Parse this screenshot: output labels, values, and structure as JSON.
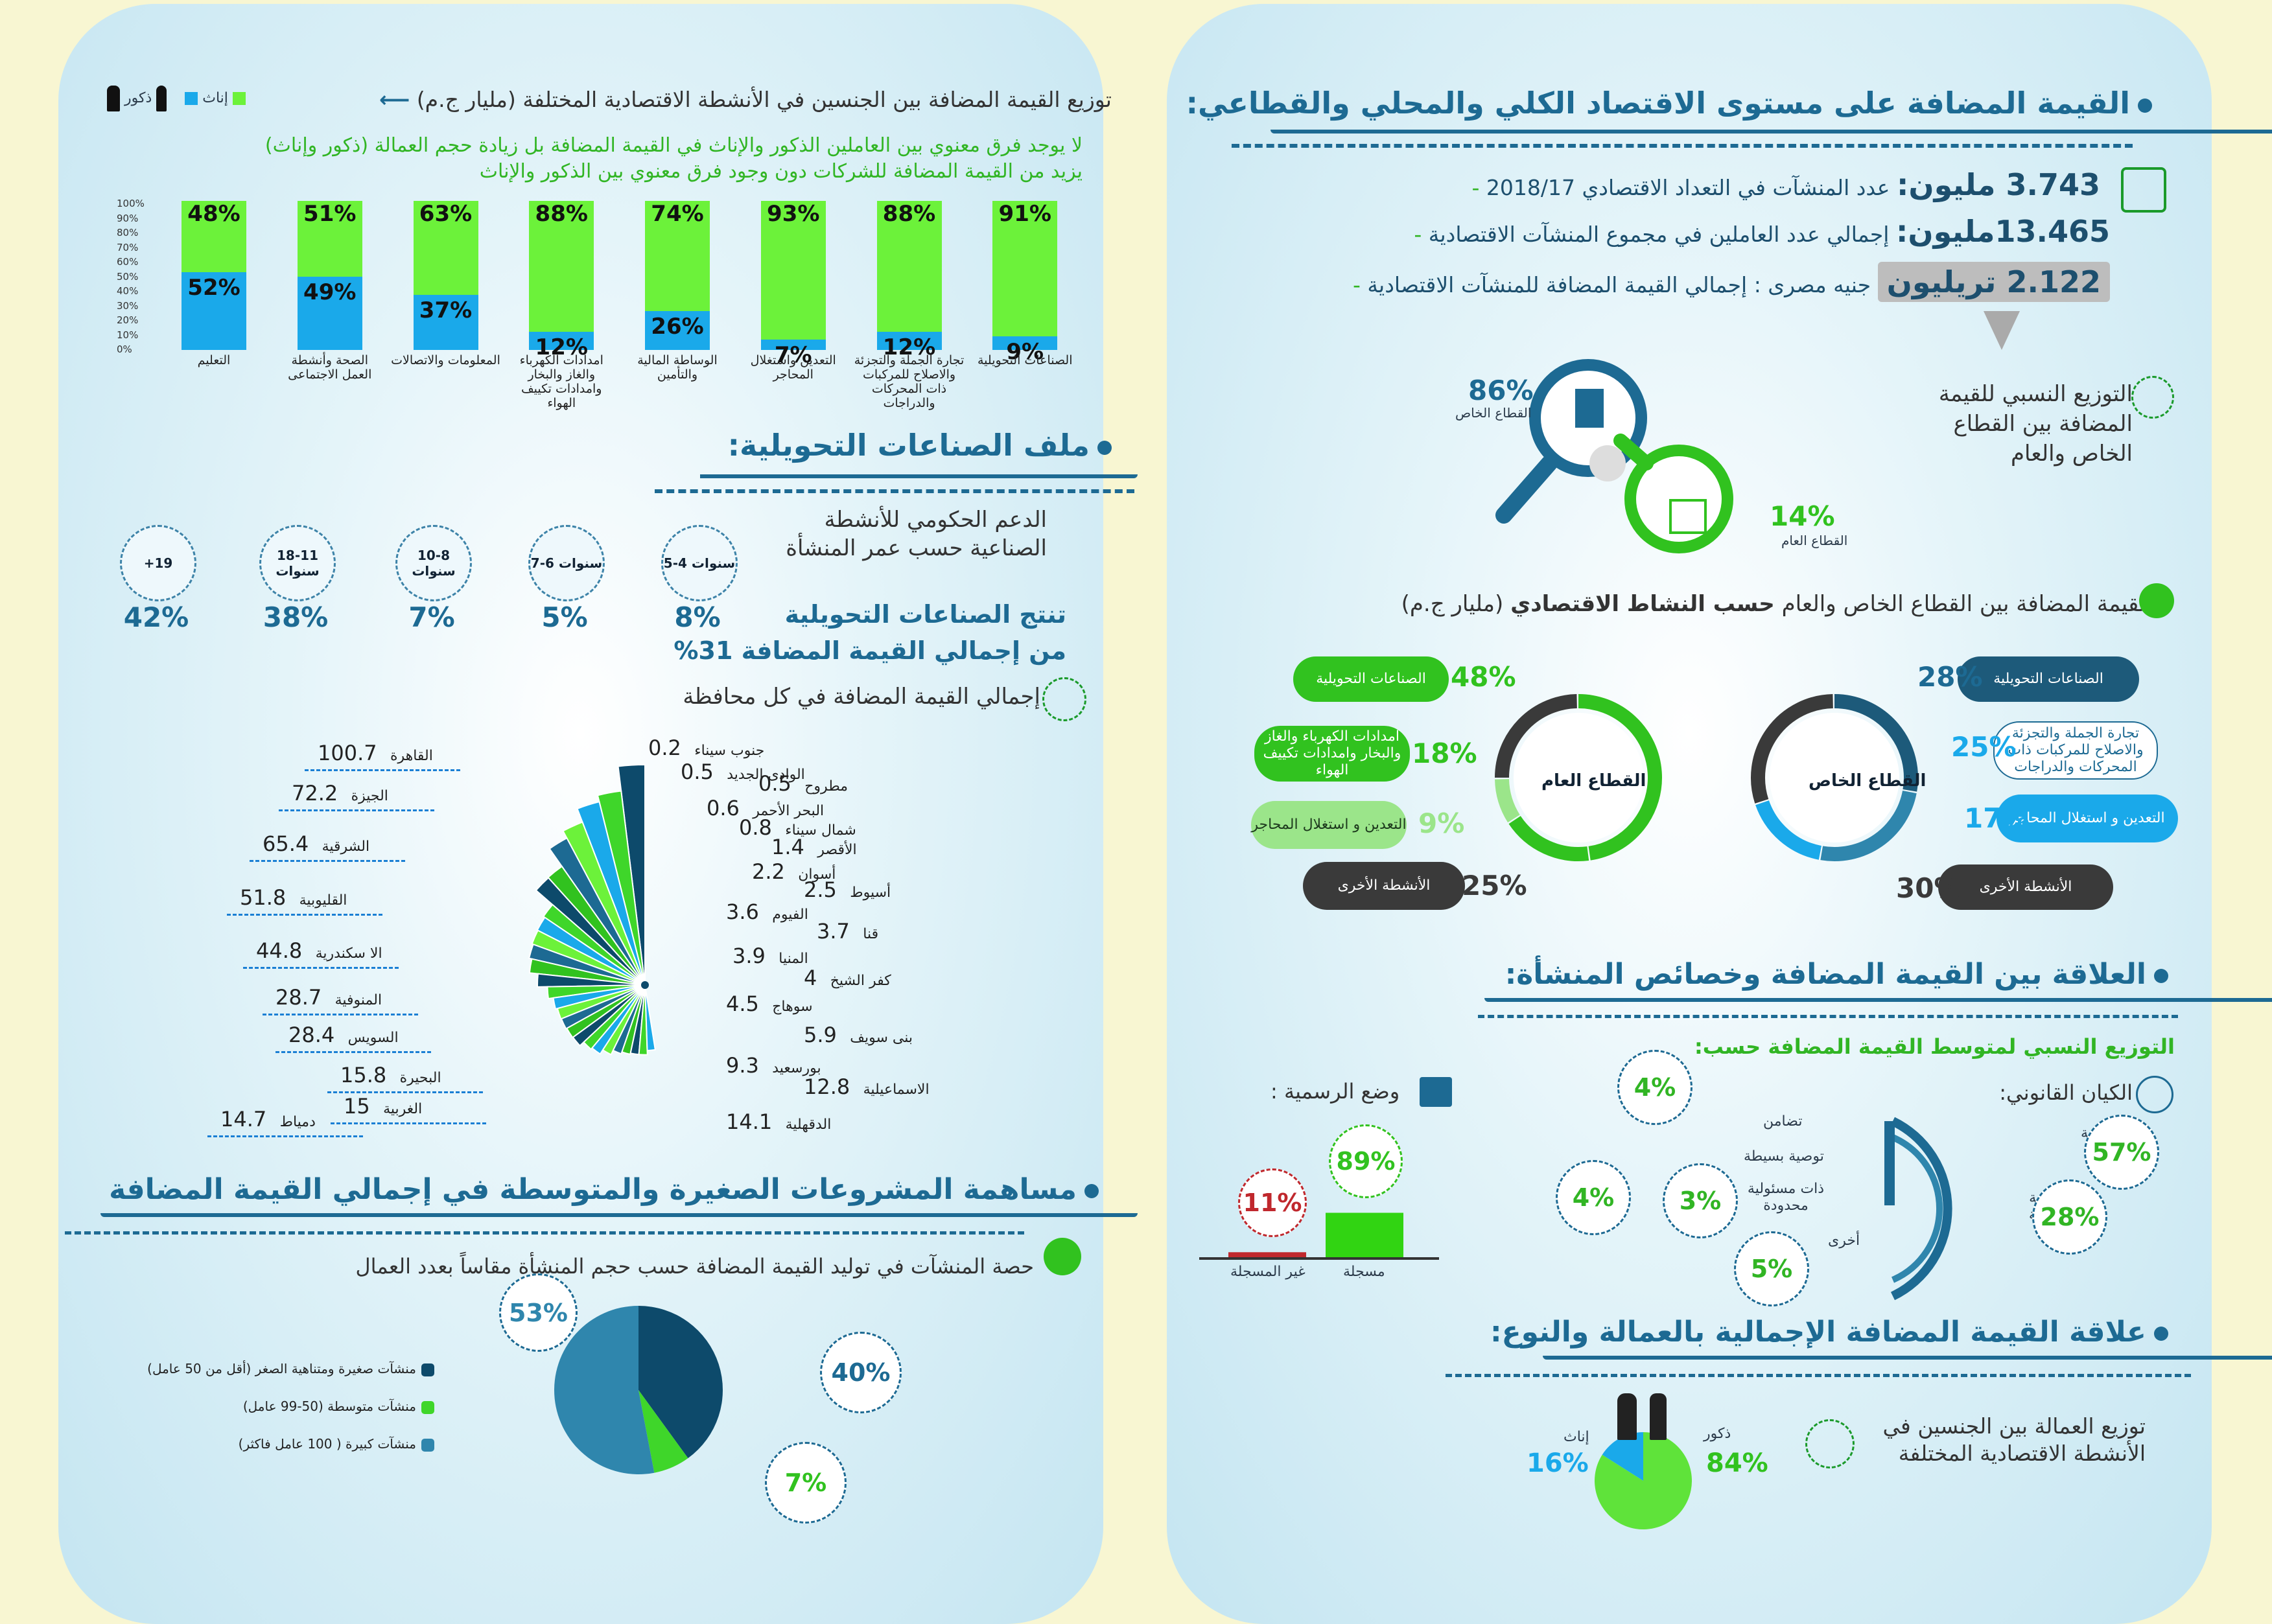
{
  "right": {
    "main_title": "القيمة المضافة على مستوى الاقتصاد الكلي والمحلي والقطاعي:",
    "stats": [
      {
        "value": "3.743 مليون:",
        "text": "عدد المنشآت في التعداد الاقتصادي 2018/17"
      },
      {
        "value": "13.465مليون:",
        "text": "إجمالي عدد العاملين في مجموع المنشآت الاقتصادية"
      },
      {
        "value": "2.122 تريليون",
        "text": "جنيه مصرى : إجمالي القيمة المضافة للمنشآت الاقتصادية"
      }
    ],
    "pub_priv": {
      "title": "التوزيع النسبي للقيمة المضافة بين القطاع الخاص والعام",
      "private_pct": "86%",
      "private_label": "القطاع الخاص",
      "public_pct": "14%",
      "public_label": "القطاع العام",
      "private_value": 86,
      "public_value": 14
    },
    "by_activity": {
      "title_pre": "القيمة المضافة بين القطاع الخاص والعام",
      "title_bold": "حسب النشاط الاقتصادي",
      "title_post": "(مليار ج.م)",
      "private": {
        "center": "القطاع الخاص",
        "items": [
          {
            "pct": "28%",
            "label": "الصناعات التحويلية",
            "value": 28
          },
          {
            "pct": "25%",
            "label": "تجارة الجملة والتجزئة والاصلاح للمركبات ذات المحركات والدراجات",
            "value": 25
          },
          {
            "pct": "17%",
            "label": "التعدين و استغلال المحاجر",
            "value": 17
          },
          {
            "pct": "30%",
            "label": "الأنشطة الأخرى",
            "value": 30
          }
        ]
      },
      "public": {
        "center": "القطاع العام",
        "items": [
          {
            "pct": "48%",
            "label": "الصناعات التحويلية",
            "value": 48
          },
          {
            "pct": "18%",
            "label": "امدادات الكهرباء والغاز والبخار وامدادات تكييف الهواء",
            "value": 18
          },
          {
            "pct": "9%",
            "label": "التعدين و استغلال المحاجر",
            "value": 9
          },
          {
            "pct": "25%",
            "label": "الأنشطة الأخرى",
            "value": 25
          }
        ]
      }
    },
    "relation_title": "العلاقة بين القيمة المضافة وخصائص المنشأة:",
    "relation_sub": "التوزيع النسبي لمتوسط القيمة المضافة حسب:",
    "legal": {
      "title": "الكيان القانوني:",
      "items": [
        {
          "label": "مساهمة",
          "pct": "57%"
        },
        {
          "label": "ملكية فردية",
          "pct": "28%"
        },
        {
          "label": "تضامن",
          "pct": "4%"
        },
        {
          "label": "توصية بسيطة",
          "pct": "4%"
        },
        {
          "label": "ذات مسئولية محدودة",
          "pct": "3%"
        },
        {
          "label": "أخرى",
          "pct": "5%"
        }
      ]
    },
    "formality": {
      "title": "وضع الرسمية :",
      "registered_label": "مسجلة",
      "registered_pct": "89%",
      "registered_value": 89,
      "unregistered_label": "غير المسجلة",
      "unregistered_pct": "11%",
      "unregistered_value": 11
    },
    "gender_title": "علاقة القيمة المضافة الإجمالية بالعمالة والنوع:",
    "gender": {
      "title": "توزيع العمالة بين الجنسين في الأنشطة الاقتصادية المختلفة",
      "male_label": "ذكور",
      "male_pct": "84%",
      "male_value": 84,
      "female_label": "إناث",
      "female_pct": "16%",
      "female_value": 16
    }
  },
  "left": {
    "gender_chart": {
      "title": "توزيع القيمة المضافة بين الجنسين في الأنشطة الاقتصادية المختلفة (مليار ج.م)",
      "legend_male": "ذكور",
      "legend_female": "إناث",
      "note_line1": "لا يوجد فرق معنوي بين العاملين الذكور والإناث في القيمة المضافة بل زيادة حجم العمالة (ذكور وإناث)",
      "note_line2": "يزيد من القيمة المضافة للشركات دون وجود فرق معنوي بين الذكور والإناث",
      "yticks": [
        "100%",
        "90%",
        "80%",
        "70%",
        "60%",
        "50%",
        "40%",
        "30%",
        "20%",
        "10%",
        "0%"
      ]
    },
    "chart_data": {
      "type": "bar",
      "categories": [
        "الصناعات التحويلية",
        "تجارة الجملة والتجزئة والاصلاح للمركبات ذات المحركات والدراجات",
        "التعدين واستغلال المحاجر",
        "الوساطة المالية والتأمين",
        "امدادات الكهرباء والغاز والبخار وامدادات تكييف الهواء",
        "المعلومات والاتصالات",
        "الصحة وأنشطة العمل الاجتماعى",
        "التعليم"
      ],
      "series": [
        {
          "name": "ذكور",
          "values": [
            91,
            88,
            93,
            74,
            88,
            63,
            51,
            48
          ],
          "labels": [
            "91%",
            "88%",
            "93%",
            "74%",
            "88%",
            "63%",
            "51%",
            "48%"
          ]
        },
        {
          "name": "إناث",
          "values": [
            9,
            12,
            7,
            26,
            12,
            37,
            49,
            52
          ],
          "labels": [
            "9%",
            "12%",
            "7%",
            "26%",
            "12%",
            "37%",
            "49%",
            "52%"
          ]
        }
      ],
      "ylim": [
        0,
        100
      ]
    },
    "manufacturing_title": "ملف الصناعات التحويلية:",
    "support": {
      "title": "الدعم الحكومي للأنشطة الصناعية حسب عمر المنشأة",
      "items": [
        {
          "age": "5-4 سنوات",
          "pct": "8%"
        },
        {
          "age": "7-6 سنوات",
          "pct": "5%"
        },
        {
          "age": "10-8 سنوات",
          "pct": "7%"
        },
        {
          "age": "18-11 سنوات",
          "pct": "38%"
        },
        {
          "age": "+19",
          "pct": "42%"
        }
      ]
    },
    "share_line1": "تنتج الصناعات التحويلية",
    "share_line2": "من إجمالي القيمة المضافة 31%",
    "gov_title": "إجمالي القيمة المضافة في كل محافظة",
    "governorates": [
      {
        "name": "القاهرة",
        "value": "100.7",
        "v": 100.7
      },
      {
        "name": "الجيزة",
        "value": "72.2",
        "v": 72.2
      },
      {
        "name": "الشرقية",
        "value": "65.4",
        "v": 65.4
      },
      {
        "name": "القليوبية",
        "value": "51.8",
        "v": 51.8
      },
      {
        "name": "الا سكندرية",
        "value": "44.8",
        "v": 44.8
      },
      {
        "name": "المنوفية",
        "value": "28.7",
        "v": 28.7
      },
      {
        "name": "السويس",
        "value": "28.4",
        "v": 28.4
      },
      {
        "name": "البحيرة",
        "value": "15.8",
        "v": 15.8
      },
      {
        "name": "الغربية",
        "value": "15",
        "v": 15
      },
      {
        "name": "دمياط",
        "value": "14.7",
        "v": 14.7
      },
      {
        "name": "جنوب سيناء",
        "value": "0.2",
        "v": 0.2
      },
      {
        "name": "الوادى الجديد",
        "value": "0.5",
        "v": 0.5
      },
      {
        "name": "مطروح",
        "value": "0.5",
        "v": 0.5
      },
      {
        "name": "البحر الأحمر",
        "value": "0.6",
        "v": 0.6
      },
      {
        "name": "شمال سيناء",
        "value": "0.8",
        "v": 0.8
      },
      {
        "name": "الأقصر",
        "value": "1.4",
        "v": 1.4
      },
      {
        "name": "أسوان",
        "value": "2.2",
        "v": 2.2
      },
      {
        "name": "أسيوط",
        "value": "2.5",
        "v": 2.5
      },
      {
        "name": "الفيوم",
        "value": "3.6",
        "v": 3.6
      },
      {
        "name": "قنا",
        "value": "3.7",
        "v": 3.7
      },
      {
        "name": "المنيا",
        "value": "3.9",
        "v": 3.9
      },
      {
        "name": "كفر الشيخ",
        "value": "4",
        "v": 4
      },
      {
        "name": "سوهاج",
        "value": "4.5",
        "v": 4.5
      },
      {
        "name": "بنى سويف",
        "value": "5.9",
        "v": 5.9
      },
      {
        "name": "بورسعيد",
        "value": "9.3",
        "v": 9.3
      },
      {
        "name": "الاسماعيلية",
        "value": "12.8",
        "v": 12.8
      },
      {
        "name": "الدقهلية",
        "value": "14.1",
        "v": 14.1
      }
    ],
    "sme_title": "مساهمة المشروعات الصغيرة والمتوسطة في إجمالي القيمة المضافة",
    "sme": {
      "title": "حصة المنشآت في توليد القيمة المضافة حسب حجم المنشأة مقاساً بعدد العمال",
      "items": [
        {
          "label": "منشآت صغيرة ومتناهية الصغر (أقل من 50 عامل)",
          "pct": "40%",
          "value": 40,
          "color": "#0d4a6b"
        },
        {
          "label": "منشآت متوسطة (50-99 عامل)",
          "pct": "7%",
          "value": 7,
          "color": "#3fd62a"
        },
        {
          "label": "منشآت كبيرة ( 100 عامل فاكثر)",
          "pct": "53%",
          "value": 53,
          "color": "#2f86ad"
        }
      ]
    }
  },
  "colors": {
    "navy": "#1d6a93",
    "green": "#31c21f",
    "blue": "#1aa9ea",
    "dark": "#3a3a3a"
  }
}
